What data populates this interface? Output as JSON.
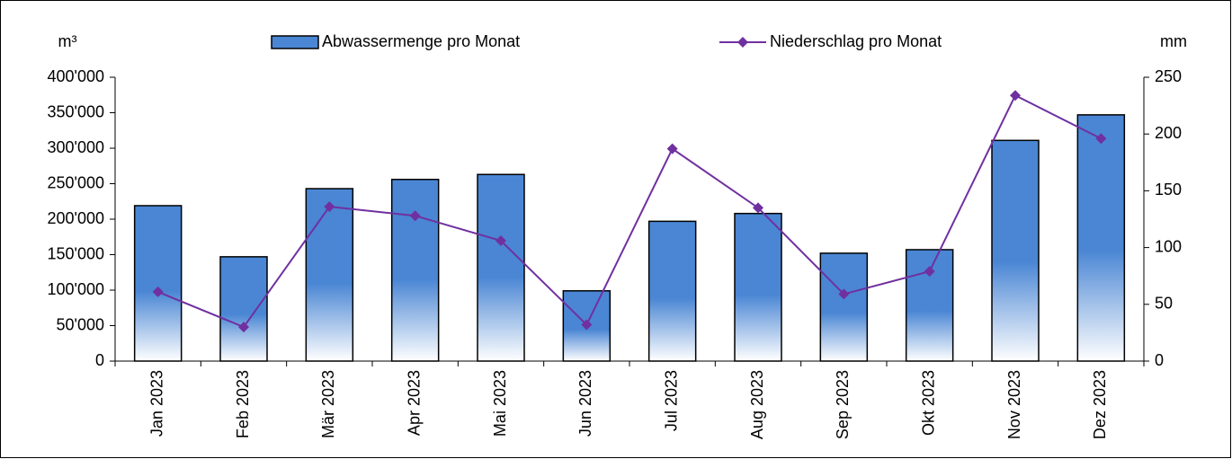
{
  "chart_data": {
    "type": "bar_line",
    "y_label": "m³",
    "y2_label": "mm",
    "categories": [
      "Jan 2023",
      "Feb 2023",
      "Mär 2023",
      "Apr 2023",
      "Mai 2023",
      "Jun 2023",
      "Jul 2023",
      "Aug 2023",
      "Sep 2023",
      "Okt 2023",
      "Nov 2023",
      "Dez 2023"
    ],
    "series": [
      {
        "name": "Abwassermenge pro Monat",
        "type": "bar",
        "color": "#4a86d4",
        "axis": "y",
        "values": [
          219000,
          147000,
          243000,
          256000,
          263000,
          99000,
          197000,
          208000,
          152000,
          157000,
          311000,
          347000
        ]
      },
      {
        "name": "Niederschlag pro Monat",
        "type": "line",
        "color": "#7030a0",
        "axis": "y2",
        "values": [
          61,
          30,
          136,
          128,
          106,
          32,
          187,
          135,
          59,
          79,
          234,
          196
        ]
      }
    ],
    "ylim": [
      0,
      400000
    ],
    "yticks": [
      0,
      {
        "value": 50000,
        "label": "50'000"
      },
      {
        "value": 100000,
        "label": "100'000"
      },
      {
        "value": 150000,
        "label": "150'000"
      },
      {
        "value": 200000,
        "label": "200'000"
      },
      {
        "value": 250000,
        "label": "250'000"
      },
      {
        "value": 300000,
        "label": "300'000"
      },
      {
        "value": 350000,
        "label": "350'000"
      },
      {
        "value": 400000,
        "label": "400'000"
      }
    ],
    "y2lim": [
      0,
      250
    ],
    "y2ticks": [
      0,
      50,
      100,
      150,
      200,
      250
    ]
  }
}
